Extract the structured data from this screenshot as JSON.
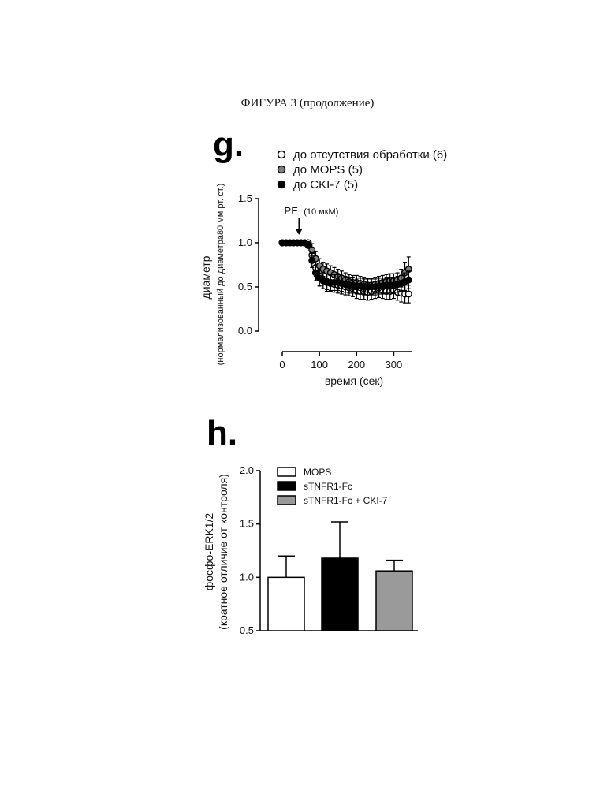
{
  "page_title": "ФИГУРА 3 (продолжение)",
  "chart_data": [
    {
      "panel": "g.",
      "type": "scatter",
      "xlabel": "время (сек)",
      "ylabel_line1": "диаметр",
      "ylabel_line2": "(нормализованный до диаметра80 мм рт. ст.)",
      "xlim": [
        0,
        350
      ],
      "ylim": [
        0.0,
        1.5
      ],
      "xticks": [
        "0",
        "100",
        "200",
        "300"
      ],
      "yticks": [
        "0.0",
        "0.5",
        "1.0",
        "1.5"
      ],
      "legend_position": "top",
      "annotation": {
        "label": "PE",
        "detail": "(10 мкМ)",
        "x": 45
      },
      "series": [
        {
          "name": "до отсутствия обработки (6)",
          "fill": "#ffffff",
          "stroke": "#000000",
          "x": [
            0,
            10,
            20,
            30,
            40,
            50,
            60,
            70,
            80,
            90,
            100,
            110,
            120,
            130,
            140,
            150,
            160,
            170,
            180,
            190,
            200,
            210,
            220,
            230,
            240,
            250,
            260,
            270,
            280,
            290,
            300,
            310,
            320,
            330,
            340
          ],
          "y": [
            1.0,
            1.0,
            1.0,
            1.0,
            1.0,
            1.0,
            1.0,
            1.0,
            0.86,
            0.72,
            0.62,
            0.58,
            0.55,
            0.54,
            0.53,
            0.52,
            0.51,
            0.5,
            0.49,
            0.48,
            0.46,
            0.45,
            0.45,
            0.44,
            0.45,
            0.46,
            0.47,
            0.46,
            0.45,
            0.45,
            0.46,
            0.44,
            0.43,
            0.42,
            0.42
          ],
          "err": [
            0.01,
            0.01,
            0.01,
            0.01,
            0.01,
            0.02,
            0.02,
            0.02,
            0.08,
            0.1,
            0.1,
            0.1,
            0.1,
            0.09,
            0.09,
            0.09,
            0.09,
            0.09,
            0.09,
            0.09,
            0.09,
            0.09,
            0.09,
            0.09,
            0.09,
            0.09,
            0.09,
            0.09,
            0.09,
            0.09,
            0.09,
            0.09,
            0.1,
            0.1,
            0.1
          ]
        },
        {
          "name": "до MOPS (5)",
          "fill": "#808080",
          "stroke": "#000000",
          "x": [
            0,
            10,
            20,
            30,
            40,
            50,
            60,
            70,
            80,
            90,
            100,
            110,
            120,
            130,
            140,
            150,
            160,
            170,
            180,
            190,
            200,
            210,
            220,
            230,
            240,
            250,
            260,
            270,
            280,
            290,
            300,
            310,
            320,
            330,
            340
          ],
          "y": [
            1.0,
            1.0,
            1.0,
            1.0,
            1.0,
            1.0,
            1.0,
            0.98,
            0.92,
            0.82,
            0.74,
            0.7,
            0.68,
            0.66,
            0.64,
            0.62,
            0.6,
            0.58,
            0.56,
            0.55,
            0.55,
            0.54,
            0.53,
            0.52,
            0.52,
            0.53,
            0.54,
            0.55,
            0.56,
            0.57,
            0.57,
            0.58,
            0.6,
            0.66,
            0.7
          ],
          "err": [
            0.01,
            0.01,
            0.01,
            0.01,
            0.01,
            0.02,
            0.02,
            0.03,
            0.07,
            0.08,
            0.08,
            0.08,
            0.08,
            0.08,
            0.08,
            0.08,
            0.08,
            0.08,
            0.08,
            0.08,
            0.08,
            0.08,
            0.08,
            0.08,
            0.08,
            0.08,
            0.08,
            0.08,
            0.08,
            0.08,
            0.08,
            0.08,
            0.1,
            0.12,
            0.14
          ]
        },
        {
          "name": "до CKI-7 (5)",
          "fill": "#000000",
          "stroke": "#000000",
          "x": [
            0,
            10,
            20,
            30,
            40,
            50,
            60,
            70,
            80,
            90,
            100,
            110,
            120,
            130,
            140,
            150,
            160,
            170,
            180,
            190,
            200,
            210,
            220,
            230,
            240,
            250,
            260,
            270,
            280,
            290,
            300,
            310,
            320,
            330,
            340
          ],
          "y": [
            1.0,
            1.0,
            1.0,
            1.0,
            1.0,
            1.0,
            1.0,
            0.97,
            0.8,
            0.66,
            0.6,
            0.57,
            0.56,
            0.55,
            0.55,
            0.55,
            0.54,
            0.53,
            0.52,
            0.52,
            0.51,
            0.51,
            0.5,
            0.5,
            0.5,
            0.5,
            0.51,
            0.51,
            0.52,
            0.52,
            0.52,
            0.53,
            0.54,
            0.56,
            0.58
          ],
          "err": [
            0.01,
            0.01,
            0.01,
            0.01,
            0.01,
            0.02,
            0.02,
            0.03,
            0.08,
            0.09,
            0.09,
            0.09,
            0.09,
            0.09,
            0.09,
            0.09,
            0.09,
            0.09,
            0.09,
            0.09,
            0.09,
            0.09,
            0.09,
            0.09,
            0.09,
            0.09,
            0.09,
            0.09,
            0.09,
            0.09,
            0.09,
            0.09,
            0.09,
            0.1,
            0.1
          ]
        }
      ]
    },
    {
      "panel": "h.",
      "type": "bar",
      "ylabel_line1": "фосфо-ERK1/2",
      "ylabel_line2": "(кратное отличие от контроля)",
      "ylim": [
        0.5,
        2.0
      ],
      "yticks": [
        "0.5",
        "1.0",
        "1.5",
        "2.0"
      ],
      "legend_position": "top",
      "series": [
        {
          "name": "MOPS",
          "value": 1.0,
          "err": 0.2,
          "fill": "#ffffff"
        },
        {
          "name": "sTNFR1-Fc",
          "value": 1.18,
          "err": 0.34,
          "fill": "#000000"
        },
        {
          "name": "sTNFR1-Fc + CKI-7",
          "value": 1.06,
          "err": 0.1,
          "fill": "#9a9a9a"
        }
      ]
    }
  ]
}
